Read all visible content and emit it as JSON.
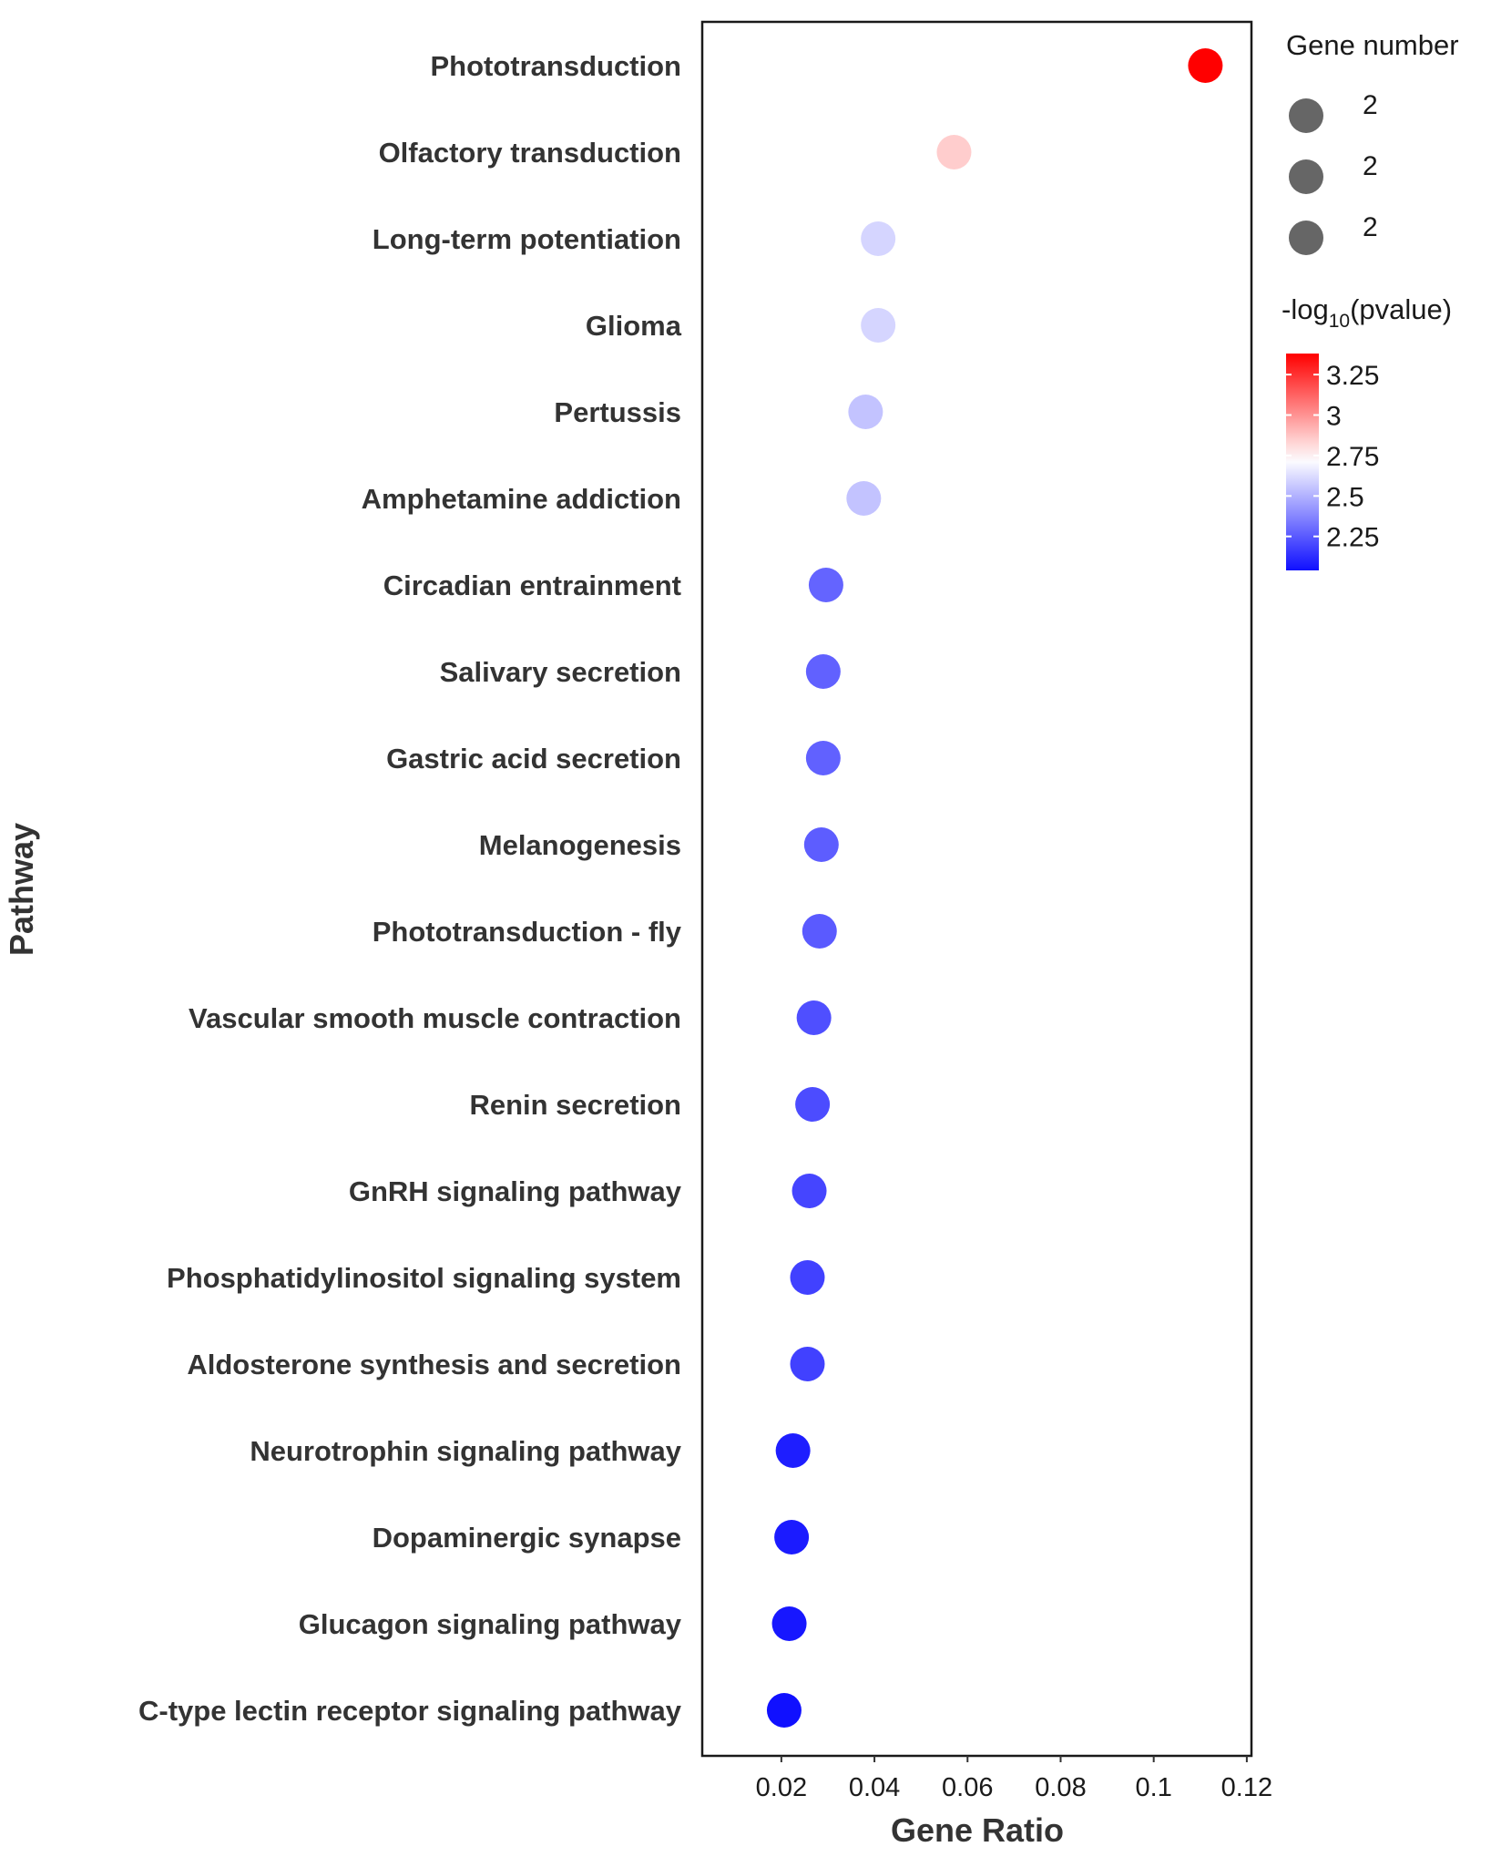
{
  "chart_data": {
    "type": "scatter",
    "title": "",
    "xlabel": "Gene Ratio",
    "ylabel": "Pathway",
    "xlim": [
      0.003,
      0.121
    ],
    "xticks": [
      0.02,
      0.04,
      0.06,
      0.08,
      0.1,
      0.12
    ],
    "xtick_labels": [
      "0.02",
      "0.04",
      "0.06",
      "0.08",
      "0.1",
      "0.12"
    ],
    "grid": false,
    "categories": [
      "Phototransduction",
      "Olfactory transduction",
      "Long-term potentiation",
      "Glioma",
      "Pertussis",
      "Amphetamine addiction",
      "Circadian entrainment",
      "Salivary secretion",
      "Gastric acid secretion",
      "Melanogenesis",
      "Phototransduction - fly",
      "Vascular smooth muscle contraction",
      "Renin secretion",
      "GnRH signaling pathway",
      "Phosphatidylinositol signaling system",
      "Aldosterone synthesis and secretion",
      "Neurotrophin signaling pathway",
      "Dopaminergic synapse",
      "Glucagon signaling pathway",
      "C-type lectin receptor signaling pathway"
    ],
    "gene_ratio": [
      0.1111,
      0.0571,
      0.0408,
      0.0408,
      0.0381,
      0.0377,
      0.0296,
      0.029,
      0.029,
      0.0286,
      0.0282,
      0.027,
      0.0267,
      0.026,
      0.0256,
      0.0256,
      0.0225,
      0.0222,
      0.0217,
      0.0206
    ],
    "neg_log10_pvalue": [
      3.38,
      2.85,
      2.6,
      2.6,
      2.55,
      2.55,
      2.28,
      2.27,
      2.27,
      2.26,
      2.25,
      2.22,
      2.21,
      2.19,
      2.18,
      2.18,
      2.08,
      2.07,
      2.06,
      2.04
    ],
    "gene_number": [
      2,
      2,
      2,
      2,
      2,
      2,
      2,
      2,
      2,
      2,
      2,
      2,
      2,
      2,
      2,
      2,
      2,
      2,
      2,
      2
    ],
    "size_legend": {
      "title": "Gene number",
      "labels": [
        "2",
        "2",
        "2"
      ]
    },
    "color_legend": {
      "title_prefix": "-log",
      "title_subscript": "10",
      "title_suffix": "(pvalue)",
      "ticks": [
        3.25,
        3,
        2.75,
        2.5,
        2.25
      ],
      "tick_labels": [
        "3.25",
        "3",
        "2.75",
        "2.5",
        "2.25"
      ],
      "range": [
        2.04,
        3.38
      ],
      "low_color": "#1010ff",
      "mid_color": "#ffffff",
      "high_color": "#ff0000",
      "midpoint": 2.72
    },
    "point_color_legend": "#666666"
  }
}
